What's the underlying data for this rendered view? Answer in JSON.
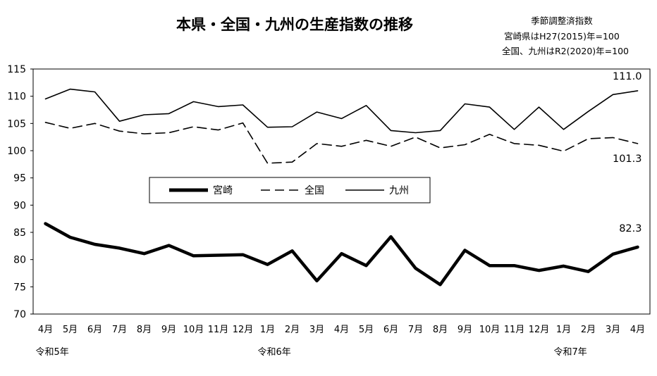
{
  "chart_data": {
    "type": "line",
    "title": "本県・全国・九州の生産指数の推移",
    "notes": [
      "季節調整済指数",
      "宮崎県はH27(2015)年=100",
      "全国、九州はR2(2020)年=100"
    ],
    "categories": [
      "4月",
      "5月",
      "6月",
      "7月",
      "8月",
      "9月",
      "10月",
      "11月",
      "12月",
      "1月",
      "2月",
      "3月",
      "4月",
      "5月",
      "6月",
      "7月",
      "8月",
      "9月",
      "10月",
      "11月",
      "12月",
      "1月",
      "2月",
      "3月",
      "4月"
    ],
    "era_labels": [
      {
        "index": 0,
        "label": "令和5年"
      },
      {
        "index": 9,
        "label": "令和6年"
      },
      {
        "index": 21,
        "label": "令和7年"
      }
    ],
    "ylim": [
      70,
      115
    ],
    "yticks": [
      70,
      75,
      80,
      85,
      90,
      95,
      100,
      105,
      110,
      115
    ],
    "series": [
      {
        "name": "宮崎",
        "style": "thick",
        "color": "#000000",
        "values": [
          86.6,
          84.1,
          82.8,
          82.1,
          81.1,
          82.6,
          80.7,
          80.8,
          80.9,
          79.1,
          81.6,
          76.1,
          81.1,
          78.9,
          84.2,
          78.4,
          75.4,
          81.7,
          78.9,
          78.9,
          78.0,
          78.8,
          77.8,
          81.0,
          82.3
        ],
        "end_label": "82.3"
      },
      {
        "name": "全国",
        "style": "dashed",
        "color": "#000000",
        "values": [
          105.2,
          104.1,
          105.0,
          103.6,
          103.1,
          103.3,
          104.4,
          103.8,
          105.1,
          97.7,
          97.9,
          101.3,
          100.8,
          101.9,
          100.8,
          102.5,
          100.5,
          101.1,
          103.0,
          101.3,
          101.0,
          99.9,
          102.2,
          102.4,
          101.3
        ],
        "end_label": "101.3"
      },
      {
        "name": "九州",
        "style": "solid",
        "color": "#000000",
        "values": [
          109.5,
          111.3,
          110.8,
          105.4,
          106.6,
          106.8,
          109.0,
          108.1,
          108.4,
          104.3,
          104.4,
          107.1,
          105.9,
          108.3,
          103.7,
          103.3,
          103.7,
          108.6,
          108.0,
          103.9,
          108.0,
          103.9,
          107.2,
          110.3,
          111.0
        ],
        "end_label": "111.0"
      }
    ],
    "legend": {
      "placement": "center"
    },
    "grid": false
  }
}
